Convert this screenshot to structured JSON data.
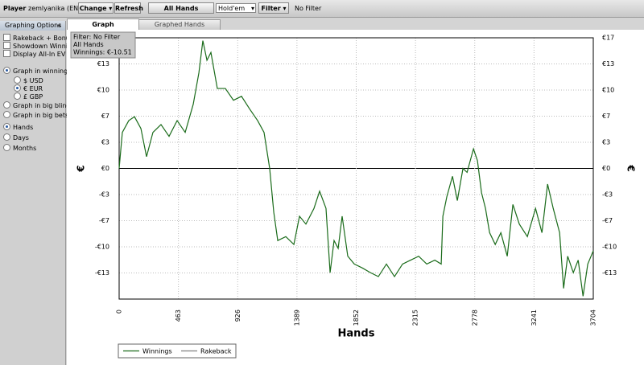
{
  "toolbar": {
    "player_label": "Player",
    "player": "zemlyanika (ENT)",
    "change": "Change",
    "refresh": "Refresh",
    "all_hands": "All Hands",
    "game": "Hold'em",
    "filter": "Filter",
    "filter_status": "No Filter"
  },
  "tabs": [
    "Graph",
    "Graphed Hands"
  ],
  "sidebar": {
    "title": "Graphing Options",
    "checkboxes": [
      "Rakeback + Bonuses",
      "Showdown Winnings",
      "Display All-In EV"
    ],
    "graph_modes": [
      {
        "label": "Graph in winnings",
        "checked": true
      },
      {
        "label": "Graph in big blinds",
        "checked": false
      },
      {
        "label": "Graph in big bets",
        "checked": false
      }
    ],
    "currencies": [
      {
        "label": "$ USD",
        "checked": false
      },
      {
        "label": "€ EUR",
        "checked": true
      },
      {
        "label": "£ GBP",
        "checked": false
      }
    ],
    "periods": [
      {
        "label": "Hands",
        "checked": true
      },
      {
        "label": "Days",
        "checked": false
      },
      {
        "label": "Months",
        "checked": false
      }
    ]
  },
  "chart_data": {
    "type": "line",
    "x_label": "Hands",
    "y_label": "€",
    "y2_label": "€",
    "annotation": [
      "Filter: No Filter",
      "All Hands",
      "Winnings: €-10.51"
    ],
    "x": [
      0,
      25,
      75,
      120,
      170,
      214,
      264,
      327,
      390,
      453,
      516,
      579,
      623,
      654,
      686,
      717,
      767,
      830,
      893,
      956,
      1019,
      1082,
      1132,
      1176,
      1208,
      1239,
      1302,
      1365,
      1409,
      1459,
      1522,
      1566,
      1616,
      1648,
      1679,
      1711,
      1742,
      1786,
      1837,
      1900,
      1963,
      2025,
      2088,
      2151,
      2214,
      2277,
      2340,
      2403,
      2466,
      2516,
      2529,
      2560,
      2604,
      2642,
      2686,
      2718,
      2768,
      2799,
      2831,
      2862,
      2894,
      2938,
      2982,
      3032,
      3076,
      3126,
      3189,
      3253,
      3303,
      3347,
      3391,
      3441,
      3472,
      3504,
      3548,
      3586,
      3624,
      3661,
      3704
    ],
    "series": [
      {
        "name": "Winnings",
        "color": "#1a6b1a",
        "values": [
          0,
          4.6,
          6.1,
          6.6,
          5.1,
          1.5,
          4.6,
          5.6,
          4.1,
          6.1,
          4.6,
          8.2,
          12.2,
          16.3,
          13.8,
          14.8,
          10.2,
          10.2,
          8.7,
          9.2,
          7.6,
          6.1,
          4.6,
          0,
          -5.6,
          -9.2,
          -8.7,
          -9.7,
          -6.1,
          -7.1,
          -5.1,
          -2.9,
          -5.1,
          -13.3,
          -9.2,
          -10.2,
          -6.1,
          -11.2,
          -12.2,
          -12.7,
          -13.3,
          -13.8,
          -12.2,
          -13.8,
          -12.2,
          -11.7,
          -11.2,
          -12.2,
          -11.7,
          -12.2,
          -6.1,
          -3.6,
          -1.0,
          -4.1,
          0,
          -0.5,
          2.5,
          1.0,
          -3.1,
          -5.1,
          -8.2,
          -9.7,
          -8.2,
          -11.2,
          -4.6,
          -7.1,
          -8.7,
          -5.1,
          -8.2,
          -2.0,
          -5.1,
          -8.2,
          -15.3,
          -11.2,
          -13.3,
          -11.7,
          -16.3,
          -12.2,
          -10.51
        ]
      },
      {
        "name": "Rakeback",
        "color": "#808080"
      }
    ],
    "xlim": [
      0,
      3704
    ],
    "xticks": [
      0,
      463,
      926,
      1389,
      1852,
      2315,
      2778,
      3241,
      3704
    ],
    "ylim": [
      -16.67,
      16.67
    ],
    "yticks": [
      {
        "value": 16.67,
        "label": "€17"
      },
      {
        "value": 13.33,
        "label": "€13"
      },
      {
        "value": 10,
        "label": "€10"
      },
      {
        "value": 6.67,
        "label": "€7"
      },
      {
        "value": 3.33,
        "label": "€3"
      },
      {
        "value": 0,
        "label": "€0"
      },
      {
        "value": -3.33,
        "label": "-€3"
      },
      {
        "value": -6.67,
        "label": "-€7"
      },
      {
        "value": -10,
        "label": "-€10"
      },
      {
        "value": -13.33,
        "label": "-€13"
      }
    ],
    "grid": true
  }
}
